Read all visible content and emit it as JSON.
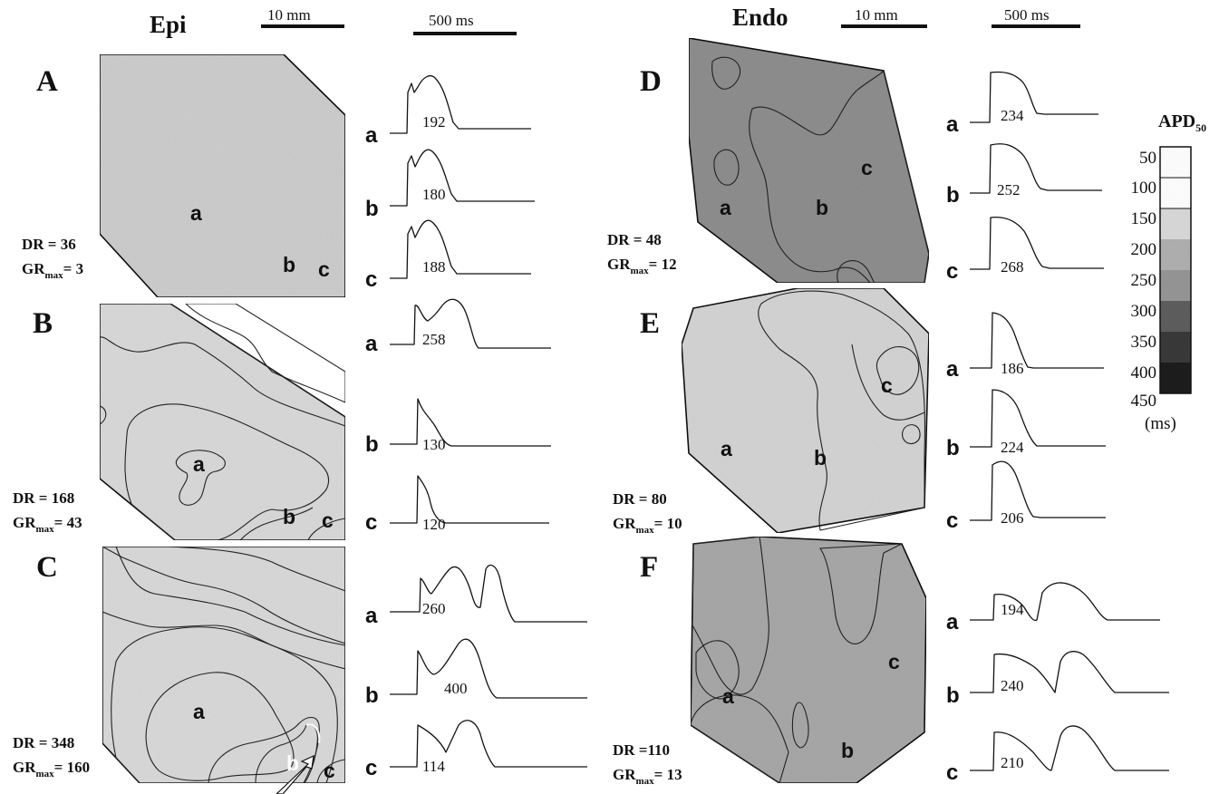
{
  "headers": {
    "epi": "Epi",
    "endo": "Endo",
    "scale_mm": "10 mm",
    "scale_ms": "500 ms"
  },
  "colors": {
    "c50": "#ffffff",
    "c100": "#ffffff",
    "c150": "#d9d9d9",
    "c200": "#b0b0b0",
    "c250": "#969696",
    "c300": "#5e5e5e",
    "c350": "#3a3a3a",
    "c400": "#1c1c1c"
  },
  "legend": {
    "title": "APD",
    "title_sub": "50",
    "unit": "(ms)",
    "ticks": [
      "50",
      "100",
      "150",
      "200",
      "250",
      "300",
      "350",
      "400",
      "450"
    ]
  },
  "panels": [
    {
      "letter": "A",
      "dr": "DR = 36",
      "gr_prefix": "GR",
      "gr_sub": "max",
      "gr_value": "= 3",
      "map_labels": [
        "a",
        "b",
        "c"
      ],
      "traces": [
        {
          "label": "a",
          "apd": "192"
        },
        {
          "label": "b",
          "apd": "180"
        },
        {
          "label": "c",
          "apd": "188"
        }
      ]
    },
    {
      "letter": "B",
      "dr": "DR = 168",
      "gr_prefix": "GR",
      "gr_sub": "max",
      "gr_value": "= 43",
      "map_labels": [
        "a",
        "b",
        "c"
      ],
      "traces": [
        {
          "label": "a",
          "apd": "258"
        },
        {
          "label": "b",
          "apd": "130"
        },
        {
          "label": "c",
          "apd": "120"
        }
      ]
    },
    {
      "letter": "C",
      "dr": "DR = 348",
      "gr_prefix": "GR",
      "gr_sub": "max",
      "gr_value": "= 160",
      "map_labels": [
        "a",
        "b",
        "c"
      ],
      "traces": [
        {
          "label": "a",
          "apd": "260"
        },
        {
          "label": "b",
          "apd": "400"
        },
        {
          "label": "c",
          "apd": "114"
        }
      ]
    },
    {
      "letter": "D",
      "dr": "DR = 48",
      "gr_prefix": "GR",
      "gr_sub": "max",
      "gr_value": "= 12",
      "map_labels": [
        "a",
        "b",
        "c"
      ],
      "traces": [
        {
          "label": "a",
          "apd": "234"
        },
        {
          "label": "b",
          "apd": "252"
        },
        {
          "label": "c",
          "apd": "268"
        }
      ]
    },
    {
      "letter": "E",
      "dr": "DR = 80",
      "gr_prefix": "GR",
      "gr_sub": "max",
      "gr_value": "= 10",
      "map_labels": [
        "a",
        "b",
        "c"
      ],
      "traces": [
        {
          "label": "a",
          "apd": "186"
        },
        {
          "label": "b",
          "apd": "224"
        },
        {
          "label": "c",
          "apd": "206"
        }
      ]
    },
    {
      "letter": "F",
      "dr": "DR =110",
      "gr_prefix": "GR",
      "gr_sub": "max",
      "gr_value": "= 13",
      "map_labels": [
        "a",
        "b",
        "c"
      ],
      "traces": [
        {
          "label": "a",
          "apd": "194"
        },
        {
          "label": "b",
          "apd": "240"
        },
        {
          "label": "c",
          "apd": "210"
        }
      ]
    }
  ]
}
